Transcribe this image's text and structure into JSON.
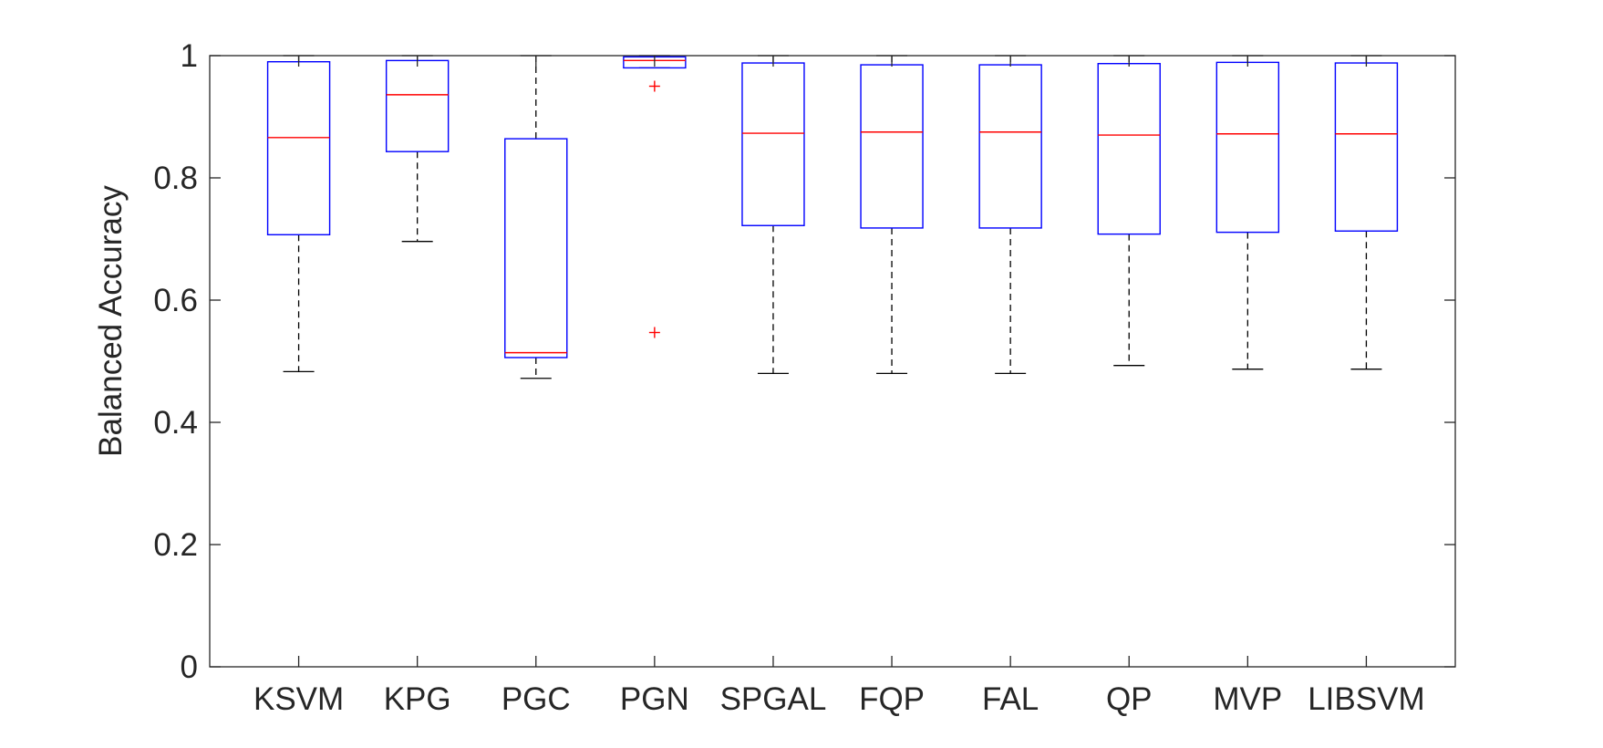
{
  "chart_data": {
    "type": "box",
    "title": "",
    "xlabel": "",
    "ylabel": "Balanced Accuracy",
    "ylim": [
      0,
      1
    ],
    "yticks": [
      "0",
      "0.2",
      "0.4",
      "0.6",
      "0.8",
      "1"
    ],
    "grid": false,
    "legend": "none",
    "colors": {
      "box": "#0000ff",
      "median": "#ff0000",
      "whisker": "#000000",
      "outlier": "#ff0000",
      "axis": "#262626"
    },
    "categories": [
      "KSVM",
      "KPG",
      "PGC",
      "PGN",
      "SPGAL",
      "FQP",
      "FAL",
      "QP",
      "MVP",
      "LIBSVM"
    ],
    "boxes": [
      {
        "label": "KSVM",
        "min": 0.483,
        "q1": 0.707,
        "median": 0.866,
        "q3": 0.99,
        "max": 1.0,
        "outliers": []
      },
      {
        "label": "KPG",
        "min": 0.696,
        "q1": 0.843,
        "median": 0.936,
        "q3": 0.992,
        "max": 1.0,
        "outliers": []
      },
      {
        "label": "PGC",
        "min": 0.472,
        "q1": 0.506,
        "median": 0.514,
        "q3": 0.864,
        "max": 1.0,
        "outliers": []
      },
      {
        "label": "PGN",
        "min": 0.98,
        "q1": 0.98,
        "median": 0.992,
        "q3": 0.998,
        "max": 1.0,
        "outliers": [
          0.95,
          0.547
        ]
      },
      {
        "label": "SPGAL",
        "min": 0.48,
        "q1": 0.722,
        "median": 0.873,
        "q3": 0.988,
        "max": 1.0,
        "outliers": []
      },
      {
        "label": "FQP",
        "min": 0.48,
        "q1": 0.718,
        "median": 0.875,
        "q3": 0.985,
        "max": 1.0,
        "outliers": []
      },
      {
        "label": "FAL",
        "min": 0.48,
        "q1": 0.718,
        "median": 0.875,
        "q3": 0.985,
        "max": 1.0,
        "outliers": []
      },
      {
        "label": "QP",
        "min": 0.493,
        "q1": 0.708,
        "median": 0.87,
        "q3": 0.987,
        "max": 1.0,
        "outliers": []
      },
      {
        "label": "MVP",
        "min": 0.487,
        "q1": 0.711,
        "median": 0.872,
        "q3": 0.989,
        "max": 1.0,
        "outliers": []
      },
      {
        "label": "LIBSVM",
        "min": 0.487,
        "q1": 0.713,
        "median": 0.872,
        "q3": 0.988,
        "max": 1.0,
        "outliers": []
      }
    ]
  }
}
